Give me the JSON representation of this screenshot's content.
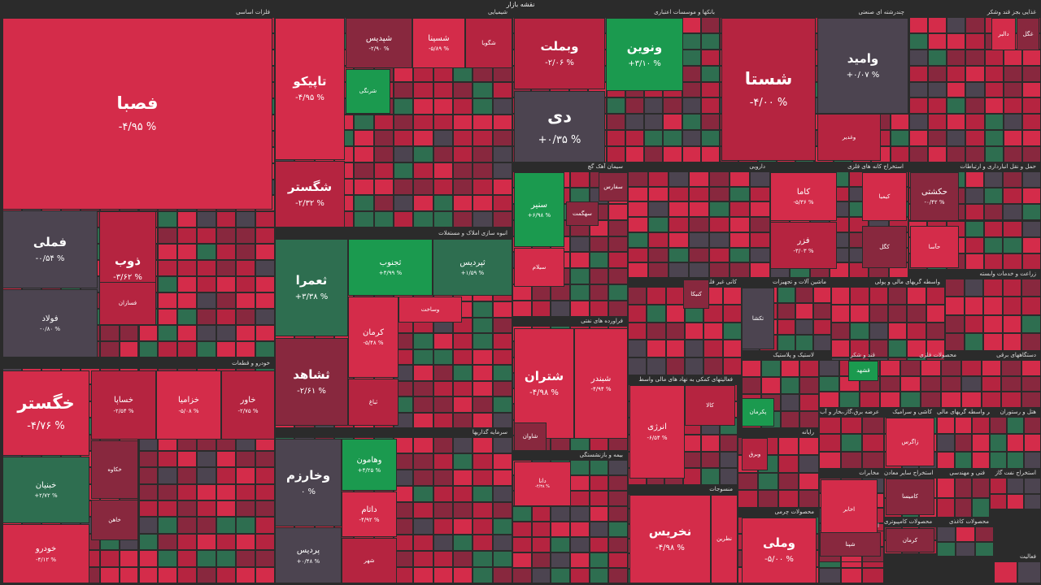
{
  "title": "نقشه بازار",
  "colors": {
    "neg_strong": "#d42c4a",
    "neg_medium": "#b52440",
    "neg_weak": "#88283e",
    "neutral": "#4c4450",
    "pos_weak": "#2e6e50",
    "pos_strong": "#1b9a4f",
    "background": "#2b2b2b"
  },
  "sectors": [
    {
      "title": "فلزات اساسی"
    },
    {
      "title": "شیمیایی"
    },
    {
      "title": "بانکها و موسسات اعتباری"
    },
    {
      "title": "چندرشته ای صنعتی"
    },
    {
      "title": "غذایی بجز قند وشکر"
    },
    {
      "title": "خودرو و قطعات"
    },
    {
      "title": "انبوه سازی املاک و مستغلات"
    },
    {
      "title": "سیمان آهک گچ"
    },
    {
      "title": "دارویی"
    },
    {
      "title": "استخراج کانه های فلزی"
    },
    {
      "title": "حمل و نقل انبارداری و ارتباطات"
    },
    {
      "title": "فراورده های نفتی"
    },
    {
      "title": "کانی غیر فلزی"
    },
    {
      "title": "ماشین آلات و تجهیزات"
    },
    {
      "title": "واسطه گریهای مالی و پولی"
    },
    {
      "title": "زراعت و خدمات وابسته"
    },
    {
      "title": "سرمایه گذاریها"
    },
    {
      "title": "فعالیتهای کمکی به نهاد های مالی واسط"
    },
    {
      "title": "لاستیک و پلاستیک"
    },
    {
      "title": "قند و شکر"
    },
    {
      "title": "محصولات فلزی"
    },
    {
      "title": "دستگاههای برقی"
    },
    {
      "title": "بیمه و بازنشستگی"
    },
    {
      "title": "منسوجات"
    },
    {
      "title": "محصولات چرمی"
    },
    {
      "title": "رایانه"
    },
    {
      "title": "مخابرات"
    },
    {
      "title": "عرضه برق،گاز،بخار و آب"
    },
    {
      "title": "کاشی و سرامیک"
    },
    {
      "title": "سایر واسطه گریهای مالی"
    },
    {
      "title": "هتل و رستوران"
    },
    {
      "title": "استخراج سایر معادن"
    },
    {
      "title": "فنی و مهندسی"
    },
    {
      "title": "استخراج نفت گاز"
    },
    {
      "title": "اطلاعات و ارتباطات"
    },
    {
      "title": "محصولات کامپیوتری"
    },
    {
      "title": "محصولات کاغذی"
    },
    {
      "title": "فعالیت"
    }
  ],
  "tiles": [
    {
      "name": "فصبا",
      "change": "-۴/۹۵ %"
    },
    {
      "name": "فملی",
      "change": "-۰/۵۴ %"
    },
    {
      "name": "فولاد",
      "change": "-۰/۸۰ %"
    },
    {
      "name": "ذوب",
      "change": "-۳/۶۲ %"
    },
    {
      "name": "فسازان",
      "change": ""
    },
    {
      "name": "تاپیکو",
      "change": "-۴/۹۵ %"
    },
    {
      "name": "شگستر",
      "change": "-۲/۳۲ %"
    },
    {
      "name": "شپدیس",
      "change": "-۲/۹۰ %"
    },
    {
      "name": "شسینا",
      "change": "-۵/۸۹ %"
    },
    {
      "name": "شگویا",
      "change": ""
    },
    {
      "name": "شرنگی",
      "change": ""
    },
    {
      "name": "وبملت",
      "change": "-۲/۰۶ %"
    },
    {
      "name": "ونوین",
      "change": "+۳/۱۰ %"
    },
    {
      "name": "دی",
      "change": "+۰/۳۵ %"
    },
    {
      "name": "شستا",
      "change": "-۴/۰۰ %"
    },
    {
      "name": "وامید",
      "change": "+۰/۰۷ %"
    },
    {
      "name": "وغدیر",
      "change": ""
    },
    {
      "name": "خگستر",
      "change": "-۴/۷۶ %"
    },
    {
      "name": "خبنیان",
      "change": "+۲/۷۲ %"
    },
    {
      "name": "خودرو",
      "change": "-۴/۱۲ %"
    },
    {
      "name": "خساپا",
      "change": "-۲/۵۴ %"
    },
    {
      "name": "خزامیا",
      "change": "-۵/۰۸ %"
    },
    {
      "name": "خاور",
      "change": "-۲/۷۵ %"
    },
    {
      "name": "خکاوه",
      "change": ""
    },
    {
      "name": "خاهن",
      "change": ""
    },
    {
      "name": "ثعمرا",
      "change": "+۳/۳۸ %"
    },
    {
      "name": "ثجنوب",
      "change": "+۴/۹۹ %"
    },
    {
      "name": "ثپردیس",
      "change": "+۱/۵۹ %"
    },
    {
      "name": "ثشاهد",
      "change": "-۲/۶۱ %"
    },
    {
      "name": "کرمان",
      "change": "-۵/۴۸ %"
    },
    {
      "name": "وساخت",
      "change": ""
    },
    {
      "name": "ثباغ",
      "change": ""
    },
    {
      "name": "وخارزم",
      "change": "۰ %"
    },
    {
      "name": "پردیس",
      "change": "+۰/۴۸ %"
    },
    {
      "name": "وهامون",
      "change": "+۴/۲۵ %"
    },
    {
      "name": "داتام",
      "change": "-۴/۹۲ %"
    },
    {
      "name": "شهر",
      "change": ""
    },
    {
      "name": "سنیر",
      "change": "+۶/۹۸ %"
    },
    {
      "name": "سیلام",
      "change": ""
    },
    {
      "name": "سهگمت",
      "change": ""
    },
    {
      "name": "سفارس",
      "change": ""
    },
    {
      "name": "شتران",
      "change": "-۴/۹۸ %"
    },
    {
      "name": "شبندر",
      "change": "-۴/۹۴ %"
    },
    {
      "name": "شاوان",
      "change": ""
    },
    {
      "name": "دانا",
      "change": "-۴/۳۸ %"
    },
    {
      "name": "کاما",
      "change": "-۵/۳۶ %"
    },
    {
      "name": "فزر",
      "change": "-۳/۰۳ %"
    },
    {
      "name": "حکشتی",
      "change": "-۰/۴۲ %"
    },
    {
      "name": "حآسا",
      "change": ""
    },
    {
      "name": "کیمیا",
      "change": ""
    },
    {
      "name": "کگل",
      "change": ""
    },
    {
      "name": "کنیکا",
      "change": ""
    },
    {
      "name": "تکشا",
      "change": ""
    },
    {
      "name": "انرژی",
      "change": "-۶/۵۴ %"
    },
    {
      "name": "کالا",
      "change": ""
    },
    {
      "name": "نخریس",
      "change": "-۴/۹۸ %"
    },
    {
      "name": "نطرین",
      "change": ""
    },
    {
      "name": "وملی",
      "change": "-۵/۰۰ %"
    },
    {
      "name": "اخابر",
      "change": ""
    },
    {
      "name": "قشهد",
      "change": ""
    },
    {
      "name": "پکرمان",
      "change": ""
    },
    {
      "name": "وبرق",
      "change": ""
    },
    {
      "name": "زاگرس",
      "change": ""
    },
    {
      "name": "کامیسا",
      "change": ""
    },
    {
      "name": "کرمان",
      "change": ""
    },
    {
      "name": "شپنا",
      "change": ""
    },
    {
      "name": "دالبر",
      "change": ""
    },
    {
      "name": "غگل",
      "change": ""
    },
    {
      "name": "غبشهر",
      "change": ""
    }
  ]
}
